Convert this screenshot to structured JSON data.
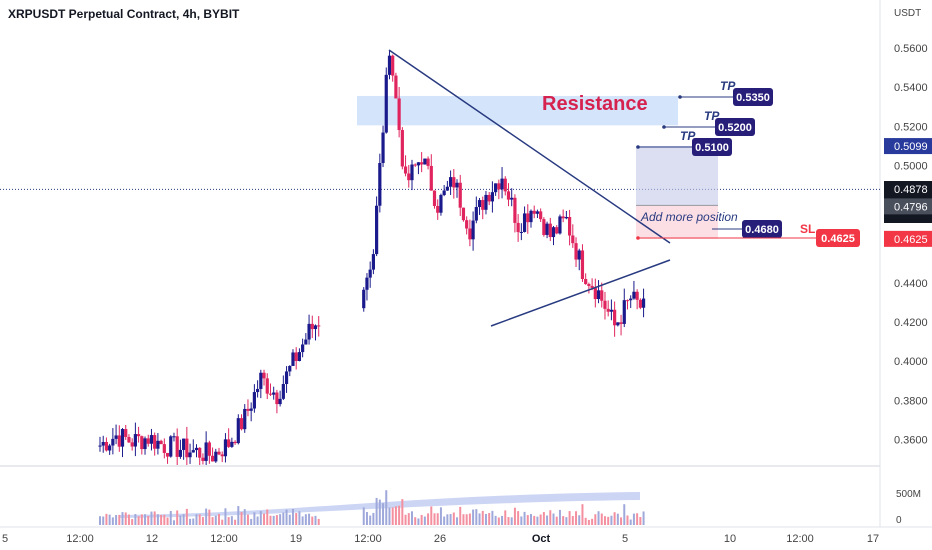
{
  "header": {
    "title": "XRPUSDT Perpetual Contract, 4h, BYBIT"
  },
  "colors": {
    "up": "#1a1a8c",
    "down": "#e0245e",
    "resistance_fill": "#cfe2fb",
    "resistance_text": "#d6224f",
    "line": "#283a80",
    "tp_bg": "#271e7a",
    "sl_bg": "#f23645",
    "last_price_bg": "#131722",
    "axis_text": "#444444",
    "volume_up": "#9fa8da",
    "volume_down": "#f48f9f"
  },
  "chart_data": {
    "type": "candlestick",
    "symbol": "XRPUSDT Perpetual Contract",
    "interval": "4h",
    "exchange": "BYBIT",
    "y_axis": {
      "unit_label": "USDT",
      "ticks": [
        "0.5600",
        "0.5400",
        "0.5200",
        "0.5000",
        "0.4400",
        "0.4200",
        "0.4000",
        "0.3800",
        "0.3600"
      ],
      "range": [
        0.35,
        0.575
      ]
    },
    "x_axis": {
      "ticks": [
        "5",
        "12:00",
        "12",
        "12:00",
        "19",
        "12:00",
        "26",
        "Oct",
        "5",
        "10",
        "12:00",
        "17"
      ]
    },
    "volume_axis": {
      "ticks": [
        "500M",
        "0"
      ]
    },
    "price_path": [
      [
        0,
        0.357
      ],
      [
        1,
        0.362
      ],
      [
        2,
        0.359
      ],
      [
        3,
        0.361
      ],
      [
        4,
        0.357
      ],
      [
        7,
        0.352
      ],
      [
        8,
        0.358
      ],
      [
        9,
        0.371
      ],
      [
        10,
        0.391
      ],
      [
        11,
        0.383
      ],
      [
        12,
        0.399
      ],
      [
        13,
        0.415
      ],
      [
        14,
        0.425
      ],
      [
        15,
        0.409
      ],
      [
        16,
        0.427
      ],
      [
        17,
        0.456
      ],
      [
        18,
        0.562
      ],
      [
        19,
        0.49
      ],
      [
        20,
        0.505
      ],
      [
        21,
        0.48
      ],
      [
        22,
        0.492
      ],
      [
        23,
        0.468
      ],
      [
        24,
        0.485
      ],
      [
        25,
        0.495
      ],
      [
        26,
        0.47
      ],
      [
        27,
        0.48
      ],
      [
        28,
        0.464
      ],
      [
        29,
        0.472
      ],
      [
        30,
        0.447
      ],
      [
        31,
        0.435
      ],
      [
        32,
        0.418
      ],
      [
        33,
        0.432
      ],
      [
        34,
        0.425
      ],
      [
        35,
        0.438
      ],
      [
        36,
        0.431
      ],
      [
        37,
        0.428
      ],
      [
        38,
        0.486
      ],
      [
        39,
        0.49
      ],
      [
        40,
        0.48
      ],
      [
        41,
        0.488
      ],
      [
        42,
        0.474
      ],
      [
        43,
        0.482
      ],
      [
        44,
        0.473
      ],
      [
        45,
        0.476
      ],
      [
        46,
        0.468
      ],
      [
        47,
        0.452
      ],
      [
        48,
        0.442
      ],
      [
        49,
        0.438
      ],
      [
        50,
        0.452
      ],
      [
        51,
        0.465
      ],
      [
        52,
        0.47
      ],
      [
        53,
        0.475
      ],
      [
        54,
        0.474
      ],
      [
        55,
        0.485
      ],
      [
        56,
        0.478
      ],
      [
        57,
        0.488
      ]
    ],
    "last_price": "0.4878",
    "countdown": "26:55",
    "secondary_price": "0.4796",
    "level_labels": {
      "tp3_axis": "0.5099",
      "sl_axis": "0.4625"
    }
  },
  "annotations": {
    "resistance_label": "Resistance",
    "resistance_zone": [
      0.5205,
      0.5355
    ],
    "tp_labels": [
      {
        "tag": "TP",
        "price": "0.5350"
      },
      {
        "tag": "TP",
        "price": "0.5200"
      },
      {
        "tag": "TP",
        "price": "0.5100"
      }
    ],
    "entry": {
      "note": "Add more position",
      "price": "0.4680"
    },
    "sl": {
      "tag": "SL",
      "price": "0.4625"
    }
  }
}
